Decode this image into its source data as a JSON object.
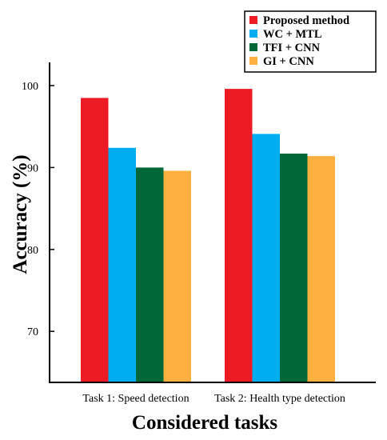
{
  "chart_data": {
    "type": "bar",
    "title": "",
    "xlabel": "Considered tasks",
    "ylabel": "Accuracy (%)",
    "categories": [
      "Task 1: Speed detection",
      "Task 2: Health type detection"
    ],
    "series": [
      {
        "name": "Proposed method",
        "color": "#ed1c24",
        "values": [
          98.5,
          99.6
        ]
      },
      {
        "name": "WC + MTL",
        "color": "#00aeef",
        "values": [
          92.4,
          94.1
        ]
      },
      {
        "name": "TFI + CNN",
        "color": "#006838",
        "values": [
          90.0,
          91.7
        ]
      },
      {
        "name": "GI + CNN",
        "color": "#fbb040",
        "values": [
          89.6,
          91.4
        ]
      }
    ],
    "ylim": [
      63.5,
      103
    ],
    "yticks": [
      70,
      80,
      90,
      100
    ],
    "grid": false,
    "legend_position": "top-right"
  }
}
